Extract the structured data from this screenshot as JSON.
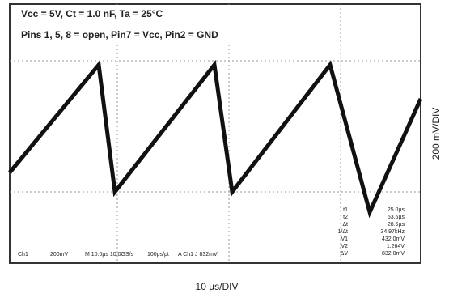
{
  "header": {
    "line1": "Vcc = 5V, Ct = 1.0 nF, Ta = 25°C",
    "line2": "Pins 1, 5, 8 = open, Pin7 = Vcc, Pin2 = GND"
  },
  "status_bar": [
    "Ch1",
    "200mV",
    "M 10.0µs 10.0GS/s",
    "100ps/pt",
    "A Ch1 J 832mV"
  ],
  "measurements": [
    [
      "t1",
      "25.0µs"
    ],
    [
      "t2",
      "53.6µs"
    ],
    [
      "Δt",
      "28.6µs"
    ],
    [
      "1/Δt",
      "34.97kHz"
    ],
    [
      "V1",
      "432.0mV"
    ],
    [
      "V2",
      "1.264V"
    ],
    [
      "ΔV",
      "832.0mV"
    ]
  ],
  "x_axis_label": "10 µs/DIV",
  "y_axis_label": "200 mV/DIV"
}
